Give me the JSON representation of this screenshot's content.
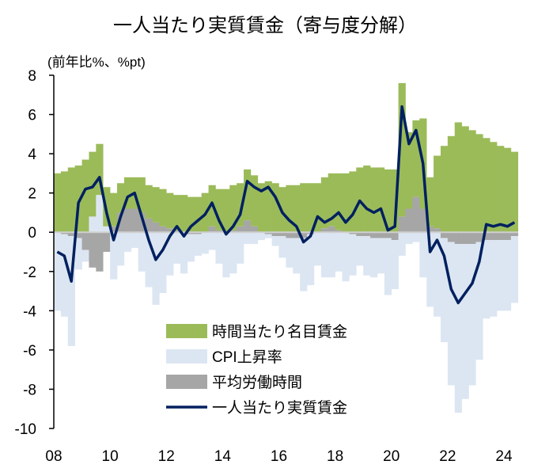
{
  "chart_data": {
    "type": "bar",
    "stacked": true,
    "title": "一人当たり実質賃金（寄与度分解）",
    "ylabel": "(前年比%、%pt)",
    "xlabel": "",
    "ylim": [
      -10,
      8
    ],
    "yticks": [
      8,
      6,
      4,
      2,
      0,
      -2,
      -4,
      -6,
      -8,
      -10
    ],
    "xticks": [
      "08",
      "10",
      "12",
      "14",
      "16",
      "18",
      "20",
      "22",
      "24"
    ],
    "xlim": [
      2008,
      2024.6
    ],
    "grid": false,
    "legend_position": "bottom-center",
    "periods": [
      "2008Q1",
      "2008Q2",
      "2008Q3",
      "2008Q4",
      "2009Q1",
      "2009Q2",
      "2009Q3",
      "2009Q4",
      "2010Q1",
      "2010Q2",
      "2010Q3",
      "2010Q4",
      "2011Q1",
      "2011Q2",
      "2011Q3",
      "2011Q4",
      "2012Q1",
      "2012Q2",
      "2012Q3",
      "2012Q4",
      "2013Q1",
      "2013Q2",
      "2013Q3",
      "2013Q4",
      "2014Q1",
      "2014Q2",
      "2014Q3",
      "2014Q4",
      "2015Q1",
      "2015Q2",
      "2015Q3",
      "2015Q4",
      "2016Q1",
      "2016Q2",
      "2016Q3",
      "2016Q4",
      "2017Q1",
      "2017Q2",
      "2017Q3",
      "2017Q4",
      "2018Q1",
      "2018Q2",
      "2018Q3",
      "2018Q4",
      "2019Q1",
      "2019Q2",
      "2019Q3",
      "2019Q4",
      "2020Q1",
      "2020Q2",
      "2020Q3",
      "2020Q4",
      "2021Q1",
      "2021Q2",
      "2021Q3",
      "2021Q4",
      "2022Q1",
      "2022Q2",
      "2022Q3",
      "2022Q4",
      "2023Q1",
      "2023Q2",
      "2023Q3",
      "2023Q4",
      "2024Q1",
      "2024Q2"
    ],
    "series": [
      {
        "name": "時間当たり名目賃金",
        "kind": "bar",
        "color": "#9bbb59",
        "values": [
          3.0,
          3.1,
          3.3,
          3.4,
          3.7,
          3.3,
          2.6,
          2.0,
          1.7,
          1.5,
          1.6,
          1.6,
          1.8,
          1.7,
          1.8,
          1.9,
          1.8,
          1.8,
          1.9,
          1.8,
          1.8,
          2.0,
          2.1,
          2.1,
          2.2,
          2.3,
          2.2,
          2.6,
          2.6,
          2.5,
          2.6,
          2.5,
          2.3,
          2.4,
          2.4,
          2.5,
          2.5,
          2.5,
          2.6,
          2.7,
          2.9,
          3.0,
          3.1,
          3.3,
          3.4,
          3.3,
          3.3,
          3.2,
          3.2,
          6.8,
          3.9,
          3.9,
          4.6,
          2.5,
          3.7,
          4.4,
          4.9,
          5.6,
          5.4,
          5.2,
          5.0,
          4.8,
          4.6,
          4.4,
          4.3,
          4.1
        ]
      },
      {
        "name": "CPI上昇率",
        "kind": "bar",
        "color": "#dce6f2",
        "values": [
          -4.0,
          -4.2,
          -5.6,
          -1.6,
          -0.6,
          0.8,
          1.9,
          0.3,
          -2.4,
          -1.7,
          -1.0,
          -0.8,
          -2.0,
          -2.8,
          -3.7,
          -3.1,
          -2.2,
          -1.6,
          -2.1,
          -1.4,
          -1.1,
          -1.1,
          -0.9,
          -1.6,
          -2.3,
          -2.1,
          -1.6,
          -0.6,
          -0.6,
          -0.4,
          -0.2,
          -0.5,
          -1.1,
          -1.5,
          -1.8,
          -2.7,
          -2.6,
          -1.7,
          -2.3,
          -2.3,
          -2.0,
          -2.5,
          -2.1,
          -1.5,
          -2.0,
          -2.0,
          -1.8,
          -2.9,
          -2.5,
          -1.2,
          -0.6,
          -0.5,
          -2.3,
          -3.8,
          -4.3,
          -5.3,
          -7.3,
          -8.6,
          -7.9,
          -7.2,
          -6.0,
          -4.0,
          -3.9,
          -3.6,
          -3.6,
          -3.4
        ]
      },
      {
        "name": "平均労働時間",
        "kind": "bar",
        "color": "#a6a6a6",
        "values": [
          0.0,
          -0.1,
          -0.2,
          -0.3,
          -0.9,
          -1.8,
          -2.0,
          -1.0,
          0.3,
          1.0,
          1.2,
          1.2,
          1.0,
          0.7,
          0.5,
          0.3,
          0.2,
          0.1,
          0.0,
          -0.1,
          -0.1,
          0.0,
          0.3,
          0.1,
          0.0,
          0.1,
          0.3,
          0.6,
          0.3,
          0.0,
          -0.1,
          -0.2,
          -0.2,
          -0.3,
          -0.3,
          -0.3,
          -0.1,
          0.0,
          0.2,
          0.3,
          0.1,
          0.0,
          -0.1,
          -0.2,
          -0.2,
          -0.3,
          -0.3,
          -0.3,
          -0.4,
          0.8,
          1.2,
          1.8,
          1.2,
          0.3,
          0.2,
          -0.3,
          -0.5,
          -0.6,
          -0.6,
          -0.6,
          -0.5,
          -0.4,
          -0.4,
          -0.4,
          -0.4,
          -0.2
        ]
      },
      {
        "name": "一人当たり実質賃金",
        "kind": "line",
        "color": "#002060",
        "values": [
          -1.0,
          -1.2,
          -2.5,
          1.5,
          2.2,
          2.3,
          2.8,
          1.0,
          -0.4,
          0.8,
          1.8,
          2.0,
          0.8,
          -0.4,
          -1.4,
          -0.9,
          -0.2,
          0.3,
          -0.2,
          0.3,
          0.6,
          0.9,
          1.5,
          0.6,
          -0.1,
          0.3,
          0.9,
          2.6,
          2.3,
          2.1,
          2.3,
          1.8,
          1.0,
          0.6,
          0.3,
          -0.5,
          -0.2,
          0.8,
          0.5,
          0.7,
          1.0,
          0.5,
          0.9,
          1.6,
          1.2,
          1.0,
          1.2,
          0.1,
          0.3,
          6.4,
          4.5,
          5.2,
          3.5,
          -1.0,
          -0.4,
          -1.2,
          -2.9,
          -3.6,
          -3.1,
          -2.6,
          -1.5,
          0.4,
          0.3,
          0.4,
          0.3,
          0.5
        ]
      }
    ]
  }
}
